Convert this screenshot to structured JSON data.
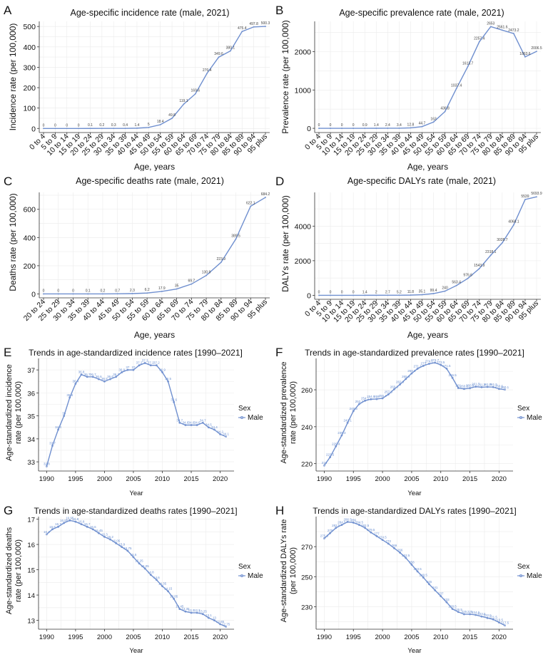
{
  "colors": {
    "line": "#6f8fcf",
    "grid": "#ebebeb",
    "axis": "#333333",
    "text": "#111111"
  },
  "age_groups_19": [
    "0 to 4",
    "5 to 9",
    "10 to 14",
    "15 to 19",
    "20 to 24",
    "25 to 29",
    "30 to 34",
    "35 to 39",
    "40 to 44",
    "45 to 49",
    "50 to 54",
    "55 to 59",
    "60 to 64",
    "65 to 69",
    "70 to 74",
    "75 to 79",
    "80 to 84",
    "85 to 89",
    "90 to 94",
    "95 plus"
  ],
  "chart_data": [
    {
      "id": "a",
      "panel_label": "A",
      "type": "line",
      "title": "Age-specific incidence rate (male, 2021)",
      "xlabel": "Age, years",
      "ylabel": "Incidence rate (per 100,000)",
      "categories": [
        "0 to 4",
        "5 to 9",
        "10 to 14",
        "15 to 19",
        "20 to 24",
        "25 to 29",
        "30 to 34",
        "35 to 39",
        "40 to 44",
        "45 to 49",
        "50 to 54",
        "55 to 59",
        "60 to 64",
        "65 to 69",
        "70 to 74",
        "75 to 79",
        "80 to 84",
        "85 to 89",
        "90 to 94",
        "95 plus"
      ],
      "values": [
        0,
        0,
        0,
        0,
        0.1,
        0.2,
        0.3,
        0.4,
        1.4,
        5,
        18.4,
        49.8,
        119.1,
        169.6,
        270.4,
        349.6,
        380.1,
        475.4,
        497.8,
        500.3
      ],
      "labels": [
        "0",
        "0",
        "0",
        "0",
        "0.1",
        "0.2",
        "0.3",
        "0.4",
        "1.4",
        "5",
        "18.4",
        "49.8",
        "119.1",
        "169.6",
        "270.4",
        "349.6",
        "380.1",
        "475.4",
        "497.8",
        "500.3"
      ],
      "ylim": [
        -20,
        525
      ],
      "yticks": [
        0,
        100,
        200,
        300,
        400,
        500
      ]
    },
    {
      "id": "b",
      "panel_label": "B",
      "type": "line",
      "title": "Age-specific prevalence rate (male, 2021)",
      "xlabel": "Age, years",
      "ylabel": "Prevalence rate (per 100,000)",
      "categories": [
        "0 to 4",
        "5 to 9",
        "10 to 14",
        "15 to 19",
        "20 to 24",
        "25 to 29",
        "30 to 34",
        "35 to 39",
        "40 to 44",
        "45 to 49",
        "50 to 54",
        "55 to 59",
        "60 to 64",
        "65 to 69",
        "70 to 74",
        "75 to 79",
        "80 to 84",
        "85 to 89",
        "90 to 94",
        "95 plus"
      ],
      "values": [
        0,
        0,
        0,
        0,
        0.9,
        1.4,
        2.4,
        3.4,
        12.8,
        44.7,
        163,
        436.8,
        1037.4,
        1613.7,
        2257.4,
        2653,
        2561.6,
        2473.2,
        1863.6,
        2006.5
      ],
      "labels": [
        "0",
        "0",
        "0",
        "0",
        "0.9",
        "1.4",
        "2.4",
        "3.4",
        "12.8",
        "44.7",
        "163",
        "436.8",
        "1037.4",
        "1613.7",
        "2257.4",
        "2653",
        "2561.6",
        "2473.2",
        "1863.6",
        "2006.5"
      ],
      "ylim": [
        -110,
        2790
      ],
      "yticks": [
        0,
        1000,
        2000
      ]
    },
    {
      "id": "c",
      "panel_label": "C",
      "type": "line",
      "title": "Age-specific deaths rate (male, 2021)",
      "xlabel": "Age, years",
      "ylabel": "Deaths rate (per 100,000)",
      "categories": [
        "20 to 24",
        "25 to 29",
        "30 to 34",
        "35 to 39",
        "40 to 44",
        "45 to 49",
        "50 to 54",
        "55 to 59",
        "60 to 64",
        "65 to 69",
        "70 to 74",
        "75 to 79",
        "80 to 84",
        "85 to 89",
        "90 to 94",
        "95 plus"
      ],
      "values": [
        0,
        0,
        0,
        0.1,
        0.2,
        0.7,
        2.3,
        6.2,
        17.9,
        35,
        69.7,
        130.9,
        223.9,
        389.5,
        622.1,
        684.2
      ],
      "labels": [
        "0",
        "0",
        "0",
        "0.1",
        "0.2",
        "0.7",
        "2.3",
        "6.2",
        "17.9",
        "35",
        "69.7",
        "130.9",
        "223.9",
        "389.5",
        "622.1",
        "684.2"
      ],
      "ylim": [
        -28,
        720
      ],
      "yticks": [
        0,
        200,
        400,
        600
      ]
    },
    {
      "id": "d",
      "panel_label": "D",
      "type": "line",
      "title": "Age-specific DALYs rate (male, 2021)",
      "xlabel": "Age, years",
      "ylabel": "DALYs rate (per 100,000)",
      "categories": [
        "0 to 4",
        "5 to 9",
        "10 to 14",
        "15 to 19",
        "20 to 24",
        "25 to 29",
        "30 to 34",
        "35 to 39",
        "40 to 44",
        "45 to 49",
        "50 to 54",
        "55 to 59",
        "60 to 64",
        "65 to 69",
        "70 to 74",
        "75 to 79",
        "80 to 84",
        "85 to 89",
        "90 to 94",
        "95 plus"
      ],
      "values": [
        0,
        0,
        0,
        0,
        1.4,
        2,
        2.7,
        5.2,
        11.8,
        35.1,
        99.4,
        240,
        563.4,
        976.6,
        1543.9,
        2318.1,
        3028.7,
        4068.1,
        5539,
        5693.9
      ],
      "labels": [
        "0",
        "0",
        "0",
        "0",
        "1.4",
        "2",
        "2.7",
        "5.2",
        "11.8",
        "35.1",
        "99.4",
        "240",
        "563.4",
        "976.6",
        "1543.9",
        "2318.1",
        "3028.7",
        "4068.1",
        "5539",
        "5693.9"
      ],
      "ylim": [
        -230,
        5950
      ],
      "yticks": [
        0,
        2000,
        4000
      ]
    },
    {
      "id": "e",
      "panel_label": "E",
      "type": "line",
      "title": "Trends in age-standardized incidence rates [1990–2021]",
      "xlabel": "Year",
      "ylabel": [
        "Age-standardized incidence",
        "rate (per 100,000)"
      ],
      "legend": {
        "title": "Sex",
        "entries": [
          "Male"
        ]
      },
      "x": [
        1990,
        1991,
        1992,
        1993,
        1994,
        1995,
        1996,
        1997,
        1998,
        1999,
        2000,
        2001,
        2002,
        2003,
        2004,
        2005,
        2006,
        2007,
        2008,
        2009,
        2010,
        2011,
        2012,
        2013,
        2014,
        2015,
        2016,
        2017,
        2018,
        2019,
        2020,
        2021
      ],
      "values": [
        32.8,
        33.7,
        34.4,
        35.0,
        35.8,
        36.4,
        36.8,
        36.7,
        36.7,
        36.6,
        36.5,
        36.6,
        36.7,
        36.9,
        37.0,
        37.0,
        37.2,
        37.3,
        37.2,
        37.2,
        36.9,
        36.5,
        35.6,
        34.7,
        34.6,
        34.6,
        34.6,
        34.7,
        34.5,
        34.4,
        34.2,
        34.1
      ],
      "ylim": [
        32.6,
        37.5
      ],
      "yticks": [
        33,
        34,
        35,
        36,
        37
      ],
      "xticks": [
        1990,
        1995,
        2000,
        2005,
        2010,
        2015,
        2020
      ]
    },
    {
      "id": "f",
      "panel_label": "F",
      "type": "line",
      "title": "Trends in age-standardized prevalence rates [1990–2021]",
      "xlabel": "Year",
      "ylabel": [
        "Age-standardized prevalence",
        "rate (per 100,000)"
      ],
      "legend": {
        "title": "Sex",
        "entries": [
          "Male"
        ]
      },
      "x": [
        1990,
        1991,
        1992,
        1993,
        1994,
        1995,
        1996,
        1997,
        1998,
        1999,
        2000,
        2001,
        2002,
        2003,
        2004,
        2005,
        2006,
        2007,
        2008,
        2009,
        2010,
        2011,
        2012,
        2013,
        2014,
        2015,
        2016,
        2017,
        2018,
        2019,
        2020,
        2021
      ],
      "values": [
        219.0,
        223.5,
        229.4,
        235.3,
        242.1,
        248.5,
        252.3,
        254.1,
        254.9,
        255.0,
        255.4,
        257.5,
        260.3,
        262.9,
        265.9,
        268.9,
        271.4,
        273.0,
        274.1,
        274.7,
        273.5,
        271.5,
        266.5,
        261.0,
        260.5,
        260.9,
        261.7,
        261.4,
        261.6,
        261.5,
        260.5,
        260.1
      ],
      "ylim": [
        216,
        277
      ],
      "yticks": [
        220,
        240,
        260
      ],
      "xticks": [
        1990,
        1995,
        2000,
        2005,
        2010,
        2015,
        2020
      ]
    },
    {
      "id": "g",
      "panel_label": "G",
      "type": "line",
      "title": "Trends in age-standardized deaths rates [1990–2021]",
      "xlabel": "Year",
      "ylabel": [
        "Age-standardized deaths",
        "rate (per 100,000)"
      ],
      "legend": {
        "title": "Sex",
        "entries": [
          "Male"
        ]
      },
      "x": [
        1990,
        1991,
        1992,
        1993,
        1994,
        1995,
        1996,
        1997,
        1998,
        1999,
        2000,
        2001,
        2002,
        2003,
        2004,
        2005,
        2006,
        2007,
        2008,
        2009,
        2010,
        2011,
        2012,
        2013,
        2014,
        2015,
        2016,
        2017,
        2018,
        2019,
        2020,
        2021
      ],
      "values": [
        16.4,
        16.6,
        16.7,
        16.85,
        16.95,
        16.9,
        16.8,
        16.7,
        16.6,
        16.45,
        16.3,
        16.2,
        16.05,
        15.9,
        15.75,
        15.5,
        15.25,
        15.05,
        14.8,
        14.6,
        14.35,
        14.15,
        13.85,
        13.45,
        13.35,
        13.3,
        13.3,
        13.25,
        13.1,
        13.0,
        12.85,
        12.75
      ],
      "ylim": [
        12.65,
        17.1
      ],
      "yticks": [
        13,
        14,
        15,
        16,
        17
      ],
      "xticks": [
        1990,
        1995,
        2000,
        2005,
        2010,
        2015,
        2020
      ]
    },
    {
      "id": "h",
      "panel_label": "H",
      "type": "line",
      "title": "Trends in age-standardized DALYs rates [1990–2021]",
      "xlabel": "Year",
      "ylabel": [
        "Age-standardized DALYs rate",
        "(per 100,000)"
      ],
      "legend": {
        "title": "Sex",
        "entries": [
          "Male"
        ]
      },
      "x": [
        1990,
        1991,
        1992,
        1993,
        1994,
        1995,
        1996,
        1997,
        1998,
        1999,
        2000,
        2001,
        2002,
        2003,
        2004,
        2005,
        2006,
        2007,
        2008,
        2009,
        2010,
        2011,
        2012,
        2013,
        2014,
        2015,
        2016,
        2017,
        2018,
        2019,
        2020,
        2021
      ],
      "values": [
        275.5,
        279.0,
        282.5,
        284.5,
        286.5,
        286.0,
        284.5,
        282.5,
        279.5,
        277.0,
        274.5,
        272.0,
        269.0,
        266.0,
        262.5,
        258.0,
        253.5,
        249.5,
        245.0,
        241.0,
        237.0,
        233.0,
        228.5,
        226.5,
        225.0,
        225.0,
        224.5,
        223.5,
        222.5,
        221.5,
        219.5,
        217.5
      ],
      "ylim": [
        215,
        290
      ],
      "yticks": [
        230,
        250,
        270
      ],
      "xticks": [
        1990,
        1995,
        2000,
        2005,
        2010,
        2015,
        2020
      ]
    }
  ]
}
